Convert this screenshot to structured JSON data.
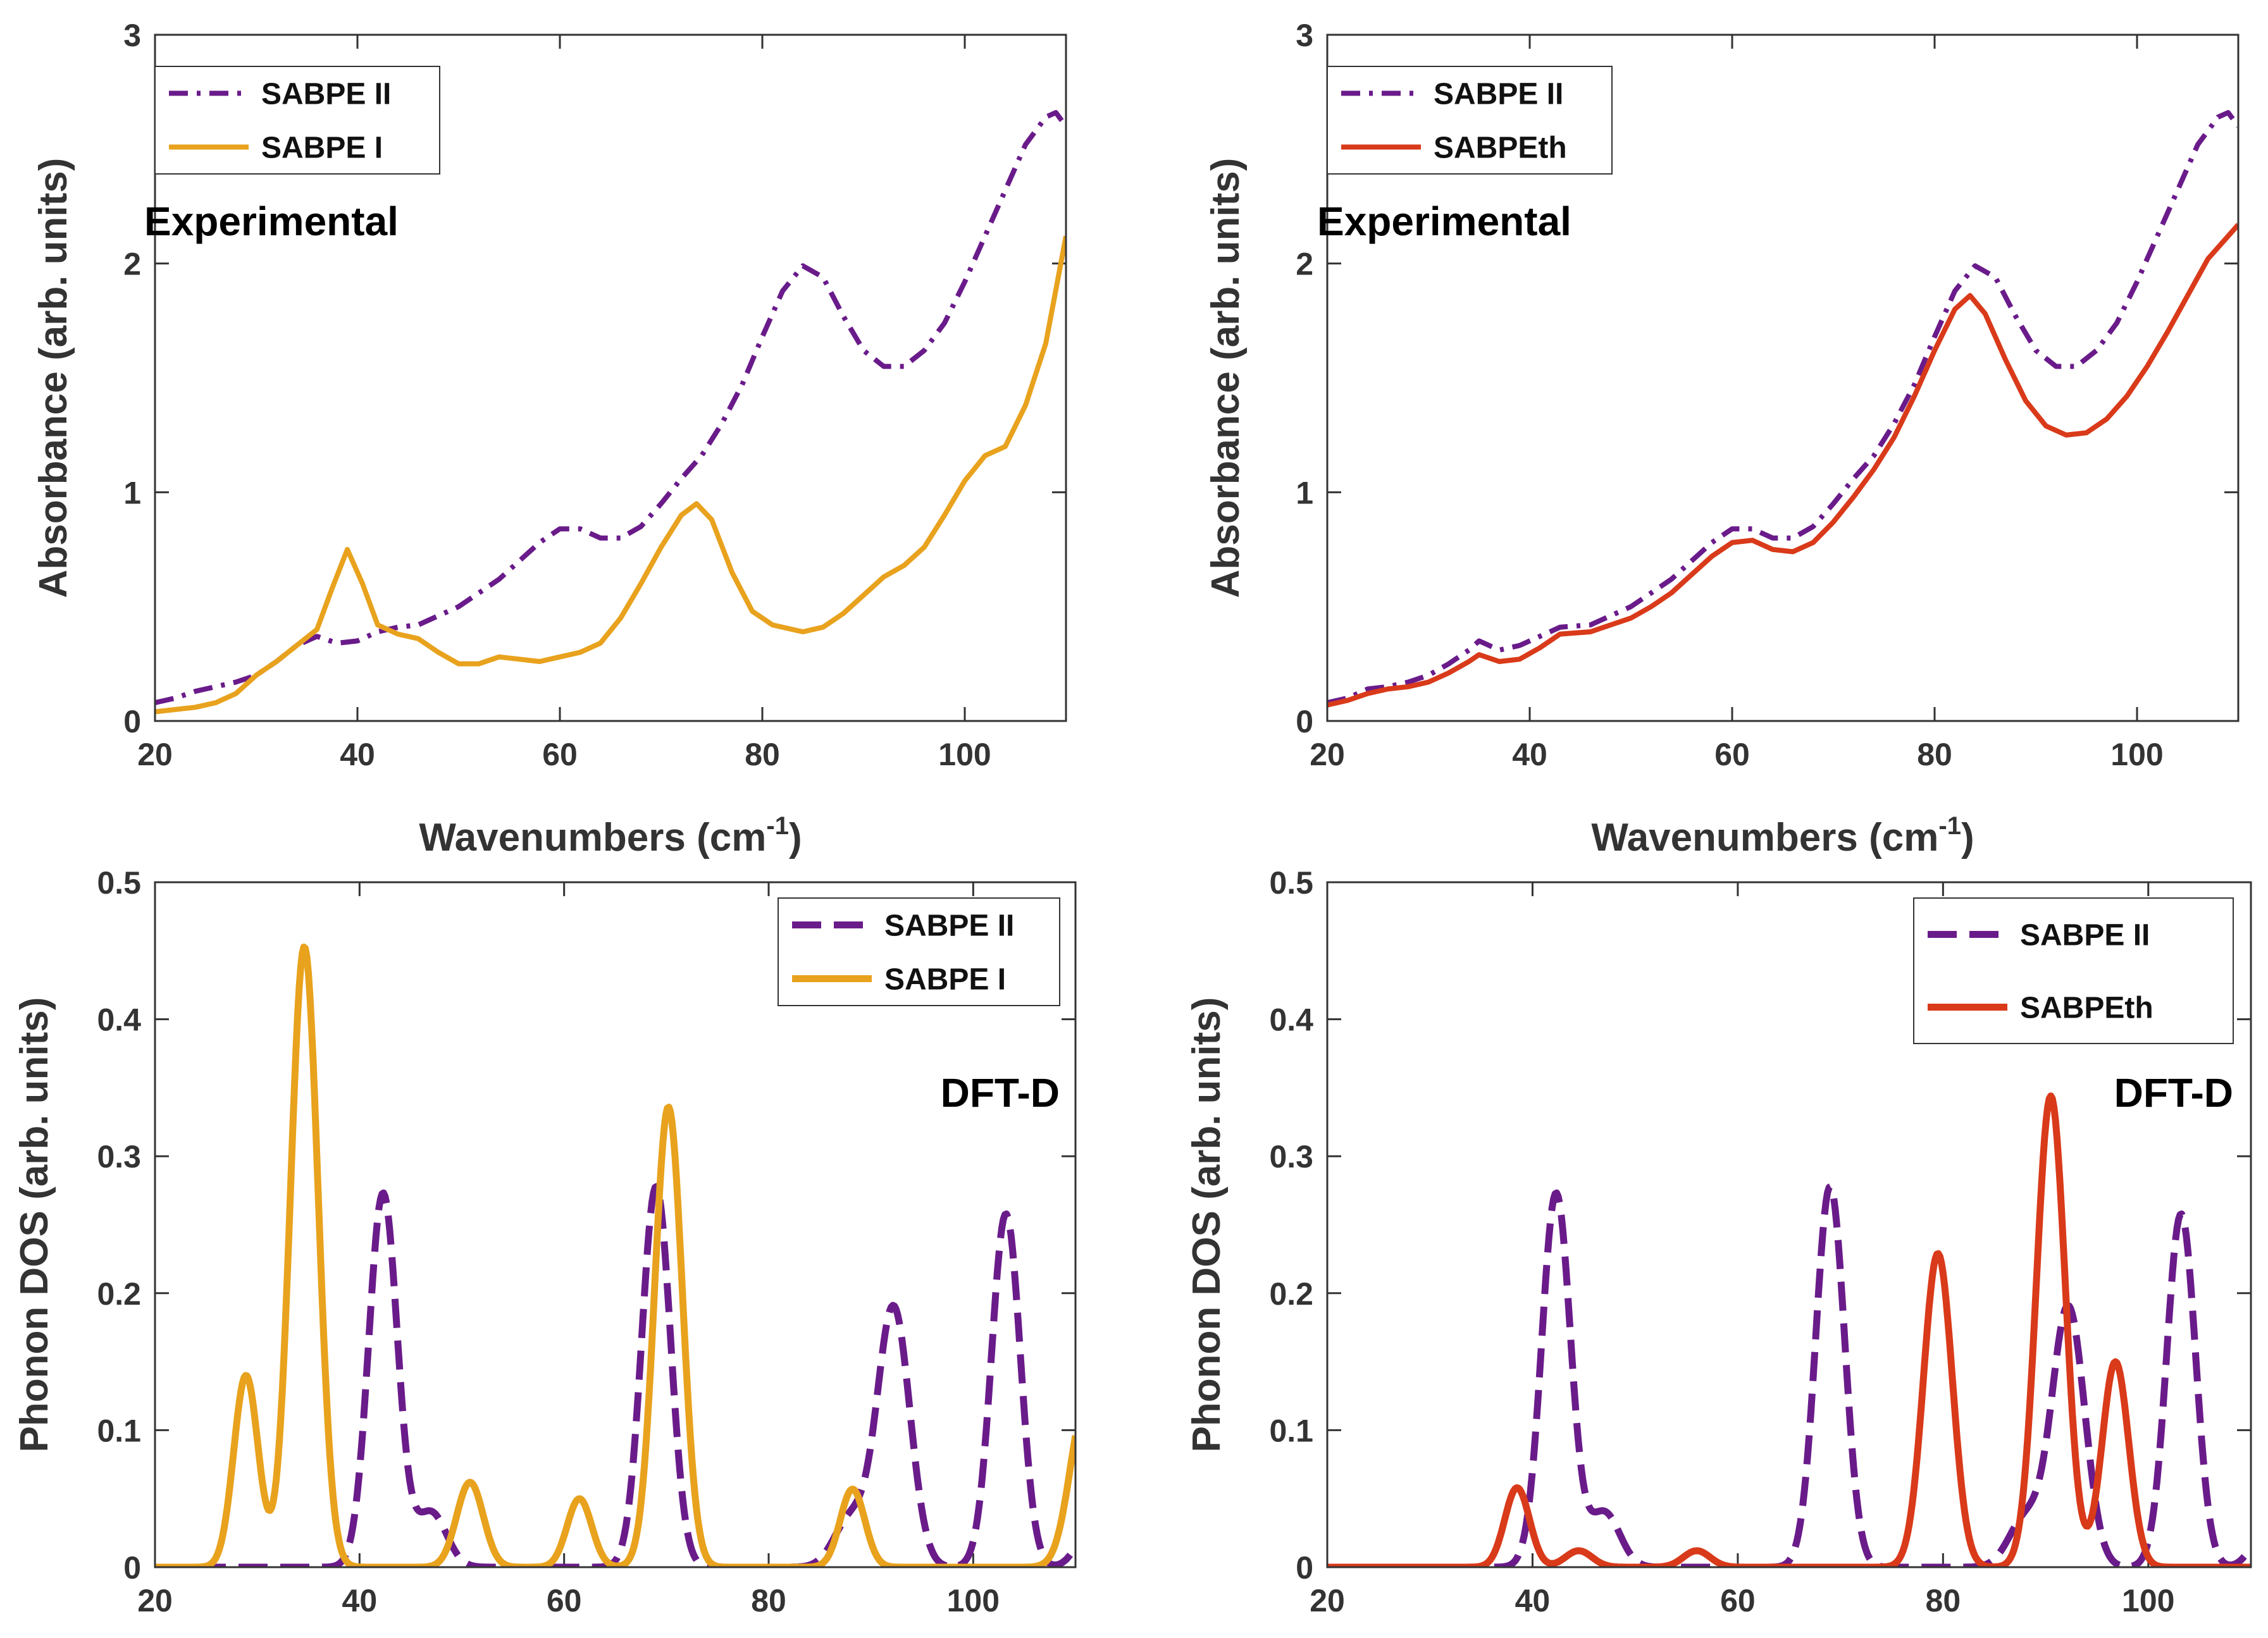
{
  "colors": {
    "sabpe_ii": "#6a1b8a",
    "sabpe_i": "#e8a21d",
    "sabpeth": "#d93a1a",
    "axis": "#333333"
  },
  "chart_data": [
    {
      "id": "tl",
      "type": "line",
      "xlabel": "Wavenumbers (cm",
      "xlabel_sup": "-1",
      "xlabel_end": ")",
      "ylabel": "Absorbance (arb. units)",
      "xlim": [
        20,
        110
      ],
      "ylim": [
        0,
        3
      ],
      "xticks": [
        "20",
        "40",
        "60",
        "80",
        "100"
      ],
      "yticks": [
        "0",
        "1",
        "2",
        "3"
      ],
      "annotation": "Experimental",
      "legend_position": "top-left",
      "series": [
        {
          "name": "SABPE II",
          "color_key": "sabpe_ii",
          "dash": "dashdot",
          "points": [
            [
              20,
              0.08
            ],
            [
              22,
              0.1
            ],
            [
              24,
              0.13
            ],
            [
              26,
              0.15
            ],
            [
              28,
              0.17
            ],
            [
              30,
              0.2
            ],
            [
              32,
              0.26
            ],
            [
              34,
              0.33
            ],
            [
              36,
              0.37
            ],
            [
              38,
              0.34
            ],
            [
              40,
              0.35
            ],
            [
              42,
              0.39
            ],
            [
              44,
              0.41
            ],
            [
              46,
              0.42
            ],
            [
              48,
              0.46
            ],
            [
              50,
              0.5
            ],
            [
              52,
              0.56
            ],
            [
              54,
              0.62
            ],
            [
              56,
              0.7
            ],
            [
              58,
              0.78
            ],
            [
              60,
              0.84
            ],
            [
              62,
              0.84
            ],
            [
              64,
              0.8
            ],
            [
              66,
              0.8
            ],
            [
              68,
              0.85
            ],
            [
              70,
              0.95
            ],
            [
              72,
              1.06
            ],
            [
              74,
              1.16
            ],
            [
              76,
              1.3
            ],
            [
              78,
              1.47
            ],
            [
              80,
              1.68
            ],
            [
              82,
              1.88
            ],
            [
              84,
              1.99
            ],
            [
              86,
              1.94
            ],
            [
              88,
              1.77
            ],
            [
              90,
              1.62
            ],
            [
              92,
              1.55
            ],
            [
              94,
              1.55
            ],
            [
              96,
              1.62
            ],
            [
              98,
              1.74
            ],
            [
              100,
              1.92
            ],
            [
              102,
              2.12
            ],
            [
              104,
              2.32
            ],
            [
              106,
              2.52
            ],
            [
              108,
              2.64
            ],
            [
              109,
              2.66
            ],
            [
              110,
              2.6
            ]
          ]
        },
        {
          "name": "SABPE I",
          "color_key": "sabpe_i",
          "dash": "solid",
          "points": [
            [
              20,
              0.04
            ],
            [
              22,
              0.05
            ],
            [
              24,
              0.06
            ],
            [
              26,
              0.08
            ],
            [
              28,
              0.12
            ],
            [
              30,
              0.2
            ],
            [
              32,
              0.26
            ],
            [
              34,
              0.33
            ],
            [
              36,
              0.4
            ],
            [
              37.5,
              0.58
            ],
            [
              39,
              0.75
            ],
            [
              40.5,
              0.6
            ],
            [
              42,
              0.42
            ],
            [
              44,
              0.38
            ],
            [
              46,
              0.36
            ],
            [
              48,
              0.3
            ],
            [
              50,
              0.25
            ],
            [
              52,
              0.25
            ],
            [
              54,
              0.28
            ],
            [
              56,
              0.27
            ],
            [
              58,
              0.26
            ],
            [
              60,
              0.28
            ],
            [
              62,
              0.3
            ],
            [
              64,
              0.34
            ],
            [
              66,
              0.45
            ],
            [
              68,
              0.6
            ],
            [
              70,
              0.76
            ],
            [
              72,
              0.9
            ],
            [
              73.5,
              0.95
            ],
            [
              75,
              0.88
            ],
            [
              77,
              0.65
            ],
            [
              79,
              0.48
            ],
            [
              81,
              0.42
            ],
            [
              84,
              0.39
            ],
            [
              86,
              0.41
            ],
            [
              88,
              0.47
            ],
            [
              90,
              0.55
            ],
            [
              92,
              0.63
            ],
            [
              94,
              0.68
            ],
            [
              96,
              0.76
            ],
            [
              98,
              0.9
            ],
            [
              100,
              1.05
            ],
            [
              102,
              1.16
            ],
            [
              104,
              1.2
            ],
            [
              106,
              1.38
            ],
            [
              108,
              1.65
            ],
            [
              110,
              2.12
            ]
          ]
        }
      ]
    },
    {
      "id": "tr",
      "type": "line",
      "xlabel": "Wavenumbers (cm",
      "xlabel_sup": "-1",
      "xlabel_end": ")",
      "ylabel": "Absorbance (arb. units)",
      "xlim": [
        20,
        110
      ],
      "ylim": [
        0,
        3
      ],
      "xticks": [
        "20",
        "40",
        "60",
        "80",
        "100"
      ],
      "yticks": [
        "0",
        "1",
        "2",
        "3"
      ],
      "annotation": "Experimental",
      "legend_position": "top-left",
      "series": [
        {
          "name": "SABPE II",
          "color_key": "sabpe_ii",
          "dash": "dashdot",
          "points": [
            [
              20,
              0.08
            ],
            [
              22,
              0.1
            ],
            [
              24,
              0.14
            ],
            [
              26,
              0.15
            ],
            [
              28,
              0.17
            ],
            [
              30,
              0.2
            ],
            [
              32,
              0.25
            ],
            [
              34,
              0.31
            ],
            [
              35,
              0.35
            ],
            [
              37,
              0.31
            ],
            [
              39,
              0.33
            ],
            [
              41,
              0.37
            ],
            [
              43,
              0.41
            ],
            [
              46,
              0.42
            ],
            [
              48,
              0.46
            ],
            [
              50,
              0.5
            ],
            [
              52,
              0.56
            ],
            [
              54,
              0.62
            ],
            [
              56,
              0.7
            ],
            [
              58,
              0.78
            ],
            [
              60,
              0.84
            ],
            [
              62,
              0.84
            ],
            [
              64,
              0.8
            ],
            [
              66,
              0.8
            ],
            [
              68,
              0.85
            ],
            [
              70,
              0.95
            ],
            [
              72,
              1.06
            ],
            [
              74,
              1.16
            ],
            [
              76,
              1.3
            ],
            [
              78,
              1.47
            ],
            [
              80,
              1.68
            ],
            [
              82,
              1.88
            ],
            [
              84,
              1.99
            ],
            [
              86,
              1.94
            ],
            [
              88,
              1.77
            ],
            [
              90,
              1.62
            ],
            [
              92,
              1.55
            ],
            [
              94,
              1.55
            ],
            [
              96,
              1.62
            ],
            [
              98,
              1.74
            ],
            [
              100,
              1.92
            ],
            [
              102,
              2.12
            ],
            [
              104,
              2.32
            ],
            [
              106,
              2.52
            ],
            [
              108,
              2.64
            ],
            [
              109,
              2.66
            ],
            [
              110,
              2.6
            ]
          ]
        },
        {
          "name": "SABPEth",
          "color_key": "sabpeth",
          "dash": "solid",
          "points": [
            [
              20,
              0.07
            ],
            [
              22,
              0.09
            ],
            [
              24,
              0.12
            ],
            [
              26,
              0.14
            ],
            [
              28,
              0.15
            ],
            [
              30,
              0.17
            ],
            [
              32,
              0.21
            ],
            [
              34,
              0.26
            ],
            [
              35,
              0.29
            ],
            [
              37,
              0.26
            ],
            [
              39,
              0.27
            ],
            [
              41,
              0.32
            ],
            [
              43,
              0.38
            ],
            [
              46,
              0.39
            ],
            [
              48,
              0.42
            ],
            [
              50,
              0.45
            ],
            [
              52,
              0.5
            ],
            [
              54,
              0.56
            ],
            [
              56,
              0.64
            ],
            [
              58,
              0.72
            ],
            [
              60,
              0.78
            ],
            [
              62,
              0.79
            ],
            [
              64,
              0.75
            ],
            [
              66,
              0.74
            ],
            [
              68,
              0.78
            ],
            [
              70,
              0.87
            ],
            [
              72,
              0.98
            ],
            [
              74,
              1.1
            ],
            [
              76,
              1.24
            ],
            [
              78,
              1.42
            ],
            [
              80,
              1.62
            ],
            [
              82,
              1.8
            ],
            [
              83.5,
              1.86
            ],
            [
              85,
              1.78
            ],
            [
              87,
              1.58
            ],
            [
              89,
              1.4
            ],
            [
              91,
              1.29
            ],
            [
              93,
              1.25
            ],
            [
              95,
              1.26
            ],
            [
              97,
              1.32
            ],
            [
              99,
              1.42
            ],
            [
              101,
              1.55
            ],
            [
              103,
              1.7
            ],
            [
              105,
              1.86
            ],
            [
              107,
              2.02
            ],
            [
              109,
              2.12
            ],
            [
              110,
              2.17
            ]
          ]
        }
      ]
    },
    {
      "id": "bl",
      "type": "line",
      "xlabel": "",
      "ylabel": "Phonon DOS (arb. units)",
      "xlim": [
        20,
        110
      ],
      "ylim": [
        0,
        0.5
      ],
      "xticks": [
        "20",
        "40",
        "60",
        "80",
        "100"
      ],
      "yticks": [
        "0",
        "0.1",
        "0.2",
        "0.3",
        "0.4",
        "0.5"
      ],
      "annotation": "DFT-D",
      "legend_position": "top-right",
      "series": [
        {
          "name": "SABPE II",
          "color_key": "sabpe_ii",
          "dash": "dash",
          "peaks": [
            [
              42.3,
              0.273,
              1.4
            ],
            [
              47,
              0.04,
              1.5
            ],
            [
              69,
              0.278,
              1.4
            ],
            [
              88,
              0.035,
              1.6
            ],
            [
              92.2,
              0.19,
              1.6
            ],
            [
              103.2,
              0.258,
              1.4
            ],
            [
              111,
              0.02,
              1.2
            ]
          ]
        },
        {
          "name": "SABPE I",
          "color_key": "sabpe_i",
          "dash": "solid",
          "peaks": [
            [
              28.9,
              0.14,
              1.2
            ],
            [
              34.6,
              0.453,
              1.35
            ],
            [
              50.8,
              0.062,
              1.3
            ],
            [
              61.5,
              0.05,
              1.2
            ],
            [
              70.2,
              0.336,
              1.35
            ],
            [
              88.2,
              0.057,
              1.2
            ],
            [
              111,
              0.12,
              1.5
            ]
          ]
        }
      ]
    },
    {
      "id": "br",
      "type": "line",
      "xlabel": "",
      "ylabel": "Phonon DOS (arb. units)",
      "xlim": [
        20,
        110
      ],
      "ylim": [
        0,
        0.5
      ],
      "xticks": [
        "20",
        "40",
        "60",
        "80",
        "100"
      ],
      "yticks": [
        "0",
        "0.1",
        "0.2",
        "0.3",
        "0.4",
        "0.5"
      ],
      "annotation": "DFT-D",
      "legend_position": "top-right",
      "series": [
        {
          "name": "SABPE II",
          "color_key": "sabpe_ii",
          "dash": "dash",
          "peaks": [
            [
              42.3,
              0.273,
              1.4
            ],
            [
              47,
              0.04,
              1.5
            ],
            [
              69,
              0.278,
              1.4
            ],
            [
              88,
              0.035,
              1.6
            ],
            [
              92.2,
              0.19,
              1.6
            ],
            [
              103.2,
              0.258,
              1.4
            ],
            [
              111,
              0.02,
              1.2
            ]
          ]
        },
        {
          "name": "SABPEth",
          "color_key": "sabpeth",
          "dash": "solid",
          "peaks": [
            [
              38.5,
              0.058,
              1.2
            ],
            [
              44.5,
              0.012,
              1.3
            ],
            [
              56,
              0.012,
              1.3
            ],
            [
              79.5,
              0.229,
              1.4
            ],
            [
              90.5,
              0.344,
              1.4
            ],
            [
              96.8,
              0.15,
              1.3
            ]
          ]
        }
      ]
    }
  ]
}
